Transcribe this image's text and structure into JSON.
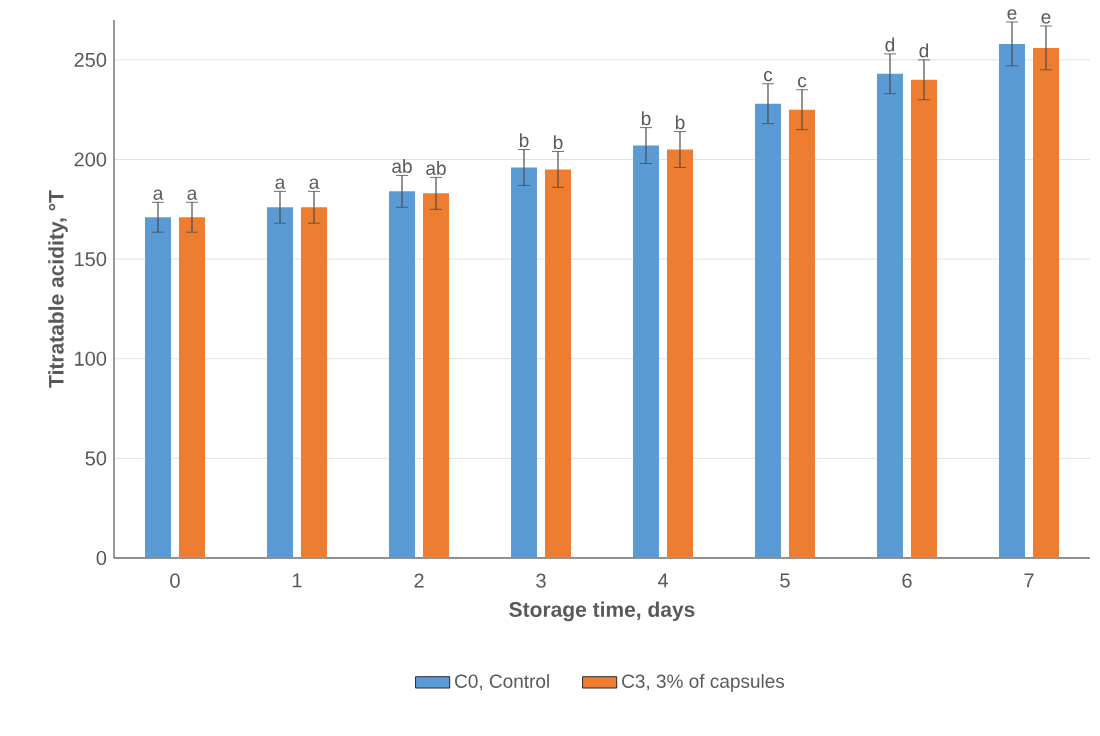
{
  "chart_data": {
    "type": "bar",
    "xlabel": "Storage time, days",
    "ylabel": "Titratable acidity, °T",
    "categories": [
      "0",
      "1",
      "2",
      "3",
      "4",
      "5",
      "6",
      "7"
    ],
    "series": [
      {
        "name": "C0, Control",
        "color": "#5b9bd5",
        "values": [
          171,
          176,
          184,
          196,
          207,
          228,
          243,
          258
        ],
        "errors": [
          7.5,
          8,
          8,
          9,
          9,
          10,
          10,
          11
        ]
      },
      {
        "name": "C3, 3% of capsules",
        "color": "#ed7d31",
        "values": [
          171,
          176,
          183,
          195,
          205,
          225,
          240,
          256
        ],
        "errors": [
          7.5,
          8,
          8,
          9,
          9,
          10,
          10,
          11
        ]
      }
    ],
    "ylim": [
      0,
      270
    ],
    "yticks": [
      0,
      50,
      100,
      150,
      200,
      250
    ],
    "grid": "y",
    "legend": "bottom",
    "annotations": [
      {
        "text": "a",
        "x": "0",
        "y": 171
      },
      {
        "text": "a",
        "x": "0",
        "y": 171
      },
      {
        "text": "a",
        "x": "1",
        "y": 176
      },
      {
        "text": "a",
        "x": "1",
        "y": 176
      },
      {
        "text": "ab",
        "x": "2",
        "y": 184
      },
      {
        "text": "ab",
        "x": "2",
        "y": 183
      },
      {
        "text": "b",
        "x": "3",
        "y": 196
      },
      {
        "text": "b",
        "x": "3",
        "y": 195
      },
      {
        "text": "b",
        "x": "4",
        "y": 207
      },
      {
        "text": "b",
        "x": "4",
        "y": 205
      },
      {
        "text": "c",
        "x": "5",
        "y": 228
      },
      {
        "text": "c",
        "x": "5",
        "y": 225
      },
      {
        "text": "d",
        "x": "6",
        "y": 243
      },
      {
        "text": "d",
        "x": "6",
        "y": 240
      },
      {
        "text": "e",
        "x": "7",
        "y": 258
      },
      {
        "text": "e",
        "x": "7",
        "y": 256
      }
    ]
  }
}
